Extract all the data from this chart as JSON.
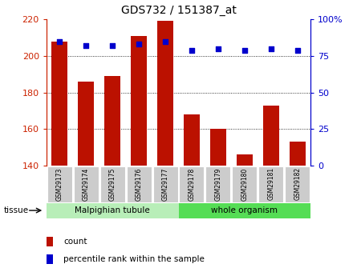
{
  "title": "GDS732 / 151387_at",
  "samples": [
    "GSM29173",
    "GSM29174",
    "GSM29175",
    "GSM29176",
    "GSM29177",
    "GSM29178",
    "GSM29179",
    "GSM29180",
    "GSM29181",
    "GSM29182"
  ],
  "counts": [
    208,
    186,
    189,
    211,
    219,
    168,
    160,
    146,
    173,
    153
  ],
  "percentiles": [
    85,
    82,
    82,
    83,
    85,
    79,
    80,
    79,
    80,
    79
  ],
  "tissue_labels": [
    "Malpighian tubule",
    "whole organism"
  ],
  "tissue_split": 5,
  "bar_color": "#bb1100",
  "dot_color": "#0000cc",
  "ylim_left": [
    140,
    220
  ],
  "ylim_right": [
    0,
    100
  ],
  "yticks_left": [
    140,
    160,
    180,
    200,
    220
  ],
  "yticks_right": [
    0,
    25,
    50,
    75,
    100
  ],
  "ytick_labels_right": [
    "0",
    "25",
    "50",
    "75",
    "100%"
  ],
  "grid_ticks": [
    160,
    180,
    200
  ],
  "grid_color": "#000000",
  "axis_color_left": "#cc2200",
  "axis_color_right": "#0000cc",
  "bg_plot": "#ffffff",
  "label_count": "count",
  "label_percentile": "percentile rank within the sample",
  "tissue_label": "tissue",
  "tick_label_bg": "#cccccc",
  "tissue_bg_malpigh": "#b8eeb8",
  "tissue_bg_whole": "#55dd55"
}
